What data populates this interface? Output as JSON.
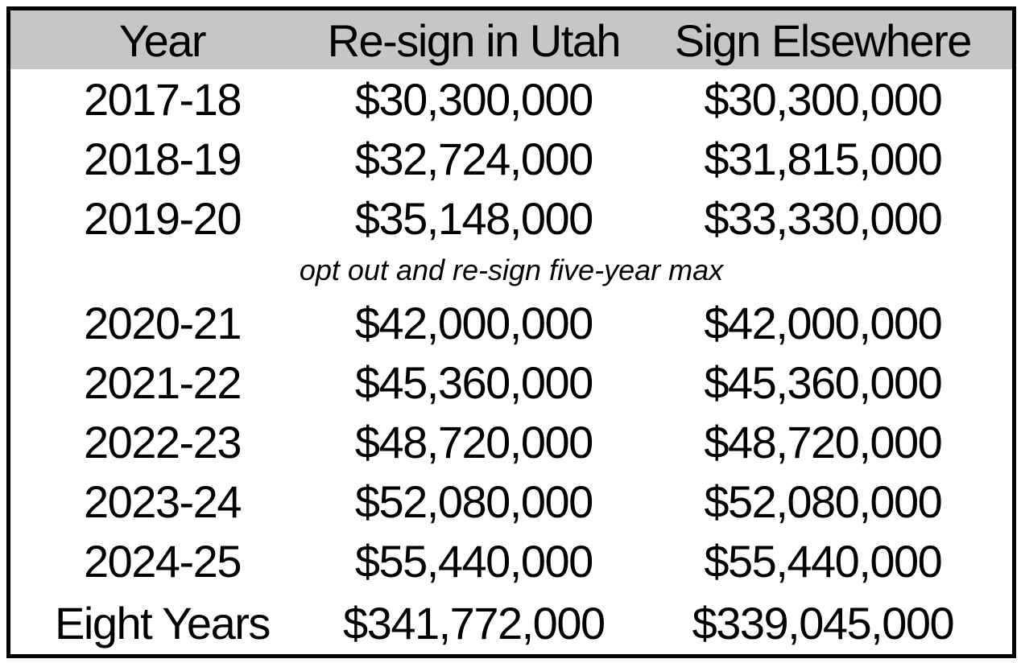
{
  "chart_data": {
    "type": "table",
    "columns": [
      "Year",
      "Re-sign in Utah",
      "Sign Elsewhere"
    ],
    "rows": [
      [
        "2017-18",
        "$30,300,000",
        "$30,300,000"
      ],
      [
        "2018-19",
        "$32,724,000",
        "$31,815,000"
      ],
      [
        "2019-20",
        "$35,148,000",
        "$33,330,000"
      ],
      [
        "2020-21",
        "$42,000,000",
        "$42,000,000"
      ],
      [
        "2021-22",
        "$45,360,000",
        "$45,360,000"
      ],
      [
        "2022-23",
        "$48,720,000",
        "$48,720,000"
      ],
      [
        "2023-24",
        "$52,080,000",
        "$52,080,000"
      ],
      [
        "2024-25",
        "$55,440,000",
        "$55,440,000"
      ]
    ],
    "note": "opt out and re-sign five-year max",
    "note_position": "between 2019-20 and 2020-21 rows, spans full table width",
    "total_row": [
      "Eight Years",
      "$341,772,000",
      "$339,045,000"
    ],
    "numeric": {
      "years": [
        "2017-18",
        "2018-19",
        "2019-20",
        "2020-21",
        "2021-22",
        "2022-23",
        "2023-24",
        "2024-25"
      ],
      "resign_in_utah": [
        30300000,
        32724000,
        35148000,
        42000000,
        45360000,
        48720000,
        52080000,
        55440000
      ],
      "sign_elsewhere": [
        30300000,
        31815000,
        33330000,
        42000000,
        45360000,
        48720000,
        52080000,
        55440000
      ],
      "total_resign_in_utah": 341772000,
      "total_sign_elsewhere": 339045000
    },
    "layout": {
      "legend": "none",
      "grid": "off",
      "header_background": "#c6c6c6",
      "border_color": "#000000",
      "text_color": "#000000",
      "column_alignment": "center"
    }
  }
}
